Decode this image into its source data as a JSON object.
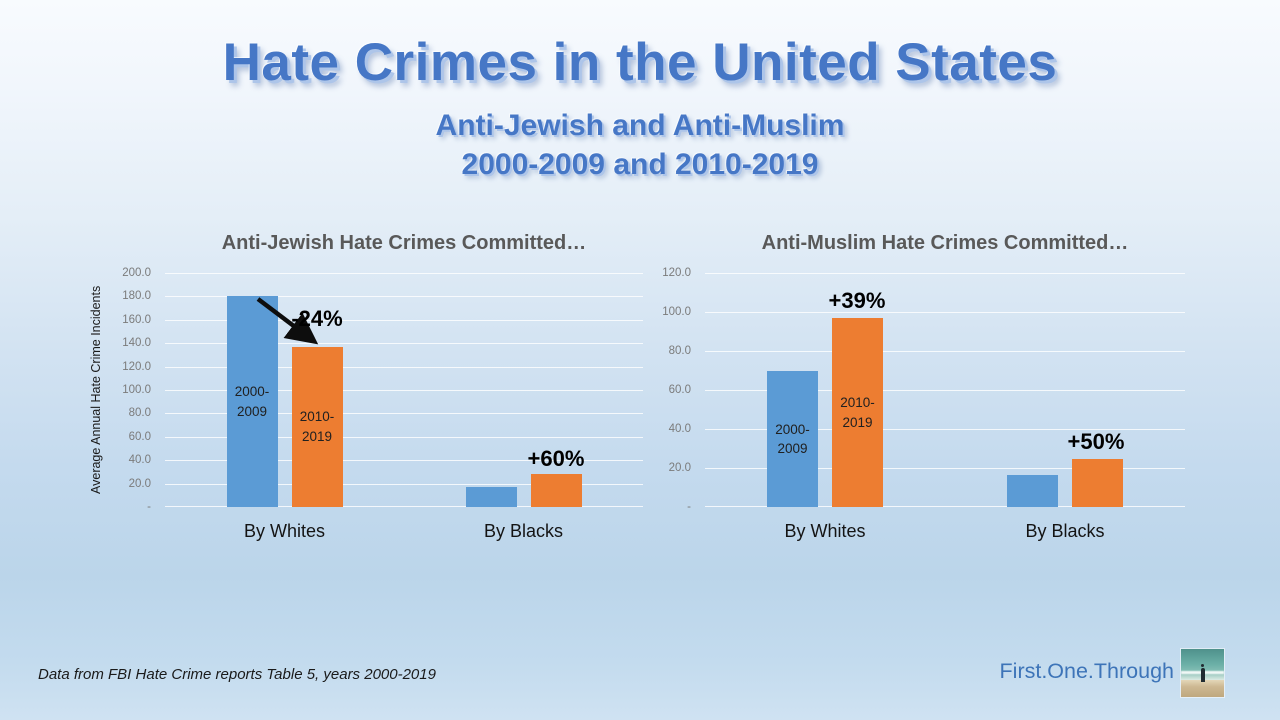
{
  "slide": {
    "title": "Hate Crimes in the United States",
    "subtitle_line1": "Anti-Jewish and Anti-Muslim",
    "subtitle_line2": "2000-2009 and 2010-2019",
    "footnote": "Data from FBI Hate Crime reports Table 5, years 2000-2019",
    "brand": "First.One.Through"
  },
  "colors": {
    "bar_blue": "#5B9BD5",
    "bar_orange": "#ED7D31",
    "title_blue": "#4677C6",
    "chart_title_gray": "#595959",
    "annotation_black": "#000000"
  },
  "chart_data": [
    {
      "type": "bar",
      "title": "Anti-Jewish Hate Crimes Committed…",
      "ylabel": "Average Annual Hate Crime Incidents",
      "xlabel": "",
      "categories": [
        "By Whites",
        "By Blacks"
      ],
      "series": [
        {
          "name": "2000-2009",
          "label_lines": [
            "2000-",
            "2009"
          ],
          "color": "#5B9BD5",
          "values": [
            180,
            17.5
          ]
        },
        {
          "name": "2010-2019",
          "label_lines": [
            "2010-",
            "2019"
          ],
          "color": "#ED7D31",
          "values": [
            137,
            28
          ]
        }
      ],
      "ylim": [
        0,
        200
      ],
      "ytick_labels": [
        "200.0",
        "180.0",
        "160.0",
        "140.0",
        "120.0",
        "100.0",
        "80.0",
        "60.0",
        "40.0",
        "20.0",
        "-"
      ],
      "grid": true,
      "legend": "none",
      "annotations": [
        {
          "text": "-24%",
          "category": 0,
          "gap": 16
        },
        {
          "text": "+60%",
          "category": 1,
          "gap": 3
        }
      ]
    },
    {
      "type": "bar",
      "title": "Anti-Muslim Hate Crimes Committed…",
      "ylabel": "",
      "xlabel": "",
      "categories": [
        "By Whites",
        "By Blacks"
      ],
      "series": [
        {
          "name": "2000-2009",
          "label_lines": [
            "2000-",
            "2009"
          ],
          "color": "#5B9BD5",
          "values": [
            69.6,
            16.4
          ]
        },
        {
          "name": "2010-2019",
          "label_lines": [
            "2010-",
            "2019"
          ],
          "color": "#ED7D31",
          "values": [
            96.7,
            24.6
          ]
        }
      ],
      "ylim": [
        0,
        120
      ],
      "ytick_labels": [
        "120.0",
        "100.0",
        "80.0",
        "60.0",
        "40.0",
        "20.0",
        "-"
      ],
      "grid": true,
      "legend": "none",
      "annotations": [
        {
          "text": "+39%",
          "category": 0,
          "gap": 5
        },
        {
          "text": "+50%",
          "category": 1,
          "gap": 5
        }
      ]
    }
  ]
}
